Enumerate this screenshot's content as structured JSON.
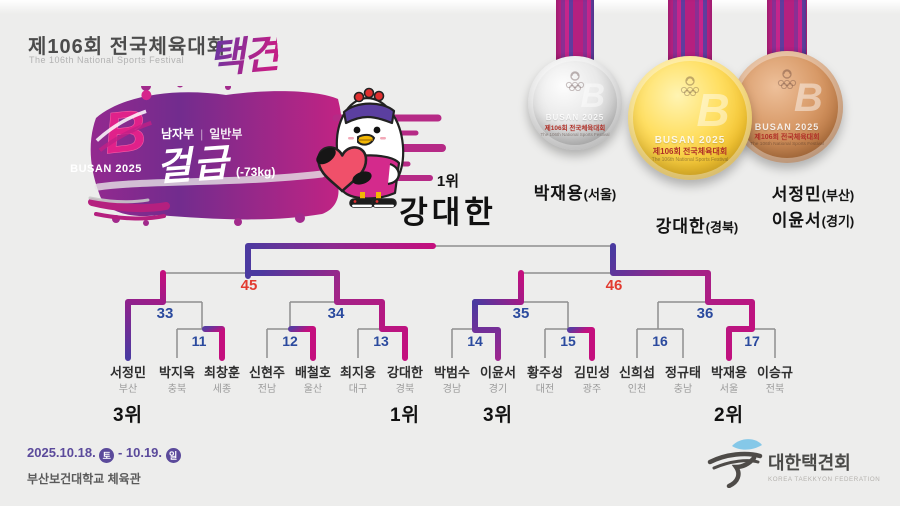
{
  "header": {
    "title": "제106회 전국체육대회",
    "subtitle": "The 106th National Sports Festival",
    "calligraphy": "택견"
  },
  "event": {
    "busan": "BUSAN 2025",
    "division_a": "남자부",
    "division_b": "일반부",
    "weight_class": "걸급",
    "weight_limit": "(-73kg)"
  },
  "medals": {
    "face": {
      "letter": "B",
      "line1": "BUSAN 2025",
      "line2": "제106회 전국체육대회",
      "line3": "The 106th National Sports Festival"
    },
    "winners": {
      "silver": [
        {
          "name": "박재용",
          "region": "(서울)"
        }
      ],
      "gold": [
        {
          "name": "강대한",
          "region": "(경북)"
        }
      ],
      "bronze": [
        {
          "name": "서정민",
          "region": "(부산)"
        },
        {
          "name": "이윤서",
          "region": "(경기)"
        }
      ]
    }
  },
  "champion": {
    "rank": "1위",
    "name": "강대한"
  },
  "bracket": {
    "round1_labels": [
      "11",
      "12",
      "13",
      "14",
      "15",
      "16",
      "17"
    ],
    "quarterfinal_labels": [
      "33",
      "34",
      "35",
      "36"
    ],
    "semifinal_labels": [
      "45",
      "46"
    ],
    "players": [
      {
        "name": "서정민",
        "region": "부산",
        "rank": "3위"
      },
      {
        "name": "박지욱",
        "region": "충북"
      },
      {
        "name": "최창훈",
        "region": "세종"
      },
      {
        "name": "신현주",
        "region": "전남"
      },
      {
        "name": "배철호",
        "region": "울산"
      },
      {
        "name": "최지웅",
        "region": "대구"
      },
      {
        "name": "강대한",
        "region": "경북",
        "rank": "1위"
      },
      {
        "name": "박범수",
        "region": "경남"
      },
      {
        "name": "이윤서",
        "region": "경기",
        "rank": "3위"
      },
      {
        "name": "황주성",
        "region": "대전"
      },
      {
        "name": "김민성",
        "region": "광주"
      },
      {
        "name": "신희섭",
        "region": "인천"
      },
      {
        "name": "정규태",
        "region": "충남"
      },
      {
        "name": "박재용",
        "region": "서울",
        "rank": "2위"
      },
      {
        "name": "이승규",
        "region": "전북"
      }
    ],
    "colors": {
      "line_gray": "#8f8f8f",
      "path_purple": "#4a3aa0",
      "path_magenta": "#c40f7e",
      "label_blue": "#2b4a9e",
      "label_red": "#e23b30"
    }
  },
  "footer": {
    "dates": {
      "prefix": "2025.10.18.",
      "day1": "토",
      "middle": "- 10.19.",
      "day2": "일"
    },
    "venue": "부산보건대학교 체육관",
    "federation": {
      "name": "대한택견회",
      "name_en": "KOREA TAEKKYON FEDERATION"
    }
  }
}
